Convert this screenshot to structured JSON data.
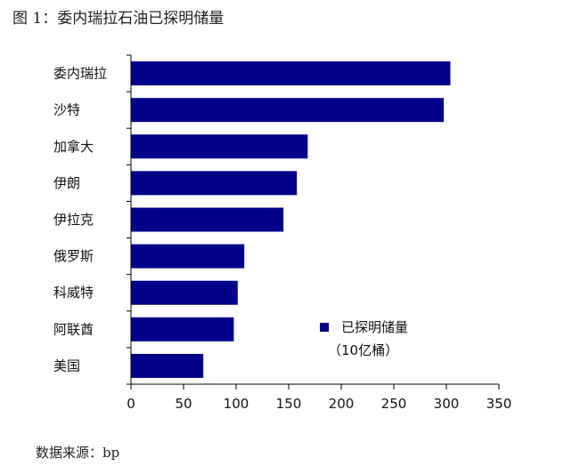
{
  "title": "图 1：委内瑞拉石油已探明储量",
  "source": "数据来源：bp",
  "chart_data": {
    "type": "bar",
    "orientation": "horizontal",
    "categories": [
      "委内瑞拉",
      "沙特",
      "加拿大",
      "伊朗",
      "伊拉克",
      "俄罗斯",
      "科威特",
      "阿联酋",
      "美国"
    ],
    "series": [
      {
        "name": "已探明储量（10亿桶）",
        "values": [
          303.8,
          297.5,
          168.1,
          157.8,
          145.0,
          107.8,
          101.5,
          97.8,
          68.8
        ],
        "color": "#00008b"
      }
    ],
    "legend": {
      "line1": "已探明储量",
      "line2": "（10亿桶）",
      "placement": "bottom-right"
    },
    "xlim": [
      0,
      350
    ],
    "xticks": [
      0,
      50,
      100,
      150,
      200,
      250,
      300,
      350
    ],
    "grid": false
  }
}
